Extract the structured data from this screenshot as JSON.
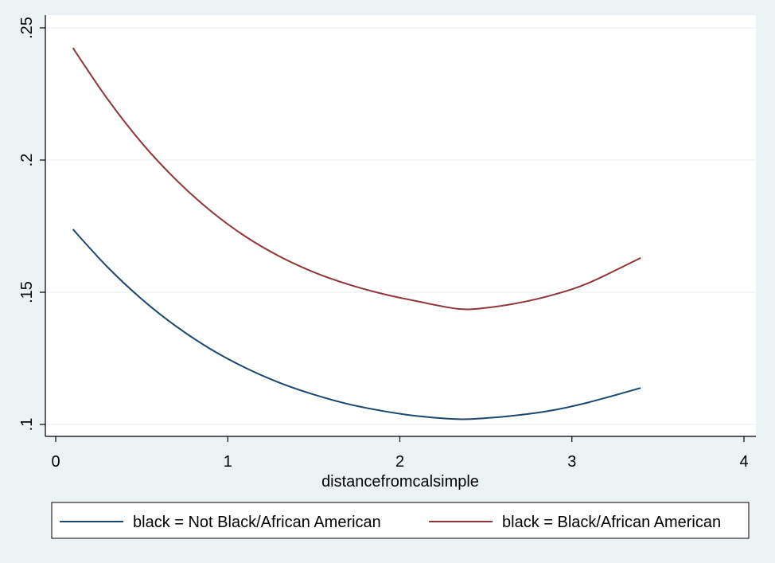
{
  "chart_data": {
    "type": "line",
    "title": "",
    "xlabel": "distancefromcalsimple",
    "ylabel": "",
    "xlim": [
      0,
      4
    ],
    "ylim": [
      0.1,
      0.25
    ],
    "x_ticks": [
      {
        "value": 0,
        "label": "0"
      },
      {
        "value": 1,
        "label": "1"
      },
      {
        "value": 2,
        "label": "2"
      },
      {
        "value": 3,
        "label": "3"
      },
      {
        "value": 4,
        "label": "4"
      }
    ],
    "y_ticks": [
      {
        "value": 0.1,
        "label": ".1"
      },
      {
        "value": 0.15,
        "label": ".15"
      },
      {
        "value": 0.2,
        "label": ".2"
      },
      {
        "value": 0.25,
        "label": ".25"
      }
    ],
    "grid": "horizontal",
    "legend_position": "bottom",
    "series": [
      {
        "name": "black = Not Black/African American",
        "color": "#1a476f",
        "x": [
          0.1,
          0.3,
          0.5,
          0.7,
          0.9,
          1.1,
          1.3,
          1.5,
          1.7,
          1.9,
          2.1,
          2.34,
          2.5,
          2.7,
          2.9,
          3.1,
          3.4
        ],
        "y": [
          0.1738,
          0.1596,
          0.1474,
          0.1371,
          0.1285,
          0.1215,
          0.1158,
          0.1113,
          0.1077,
          0.1051,
          0.1032,
          0.102,
          0.1024,
          0.1036,
          0.1055,
          0.1084,
          0.1138
        ]
      },
      {
        "name": "black = Black/African American",
        "color": "#90353b",
        "x": [
          0.1,
          0.3,
          0.5,
          0.7,
          0.9,
          1.1,
          1.3,
          1.5,
          1.7,
          1.9,
          2.1,
          2.34,
          2.5,
          2.7,
          2.9,
          3.1,
          3.4
        ],
        "y": [
          0.2424,
          0.2232,
          0.2065,
          0.1925,
          0.1808,
          0.1712,
          0.1636,
          0.1576,
          0.153,
          0.1494,
          0.1466,
          0.1437,
          0.1441,
          0.1461,
          0.1492,
          0.1536,
          0.163
        ]
      }
    ]
  }
}
